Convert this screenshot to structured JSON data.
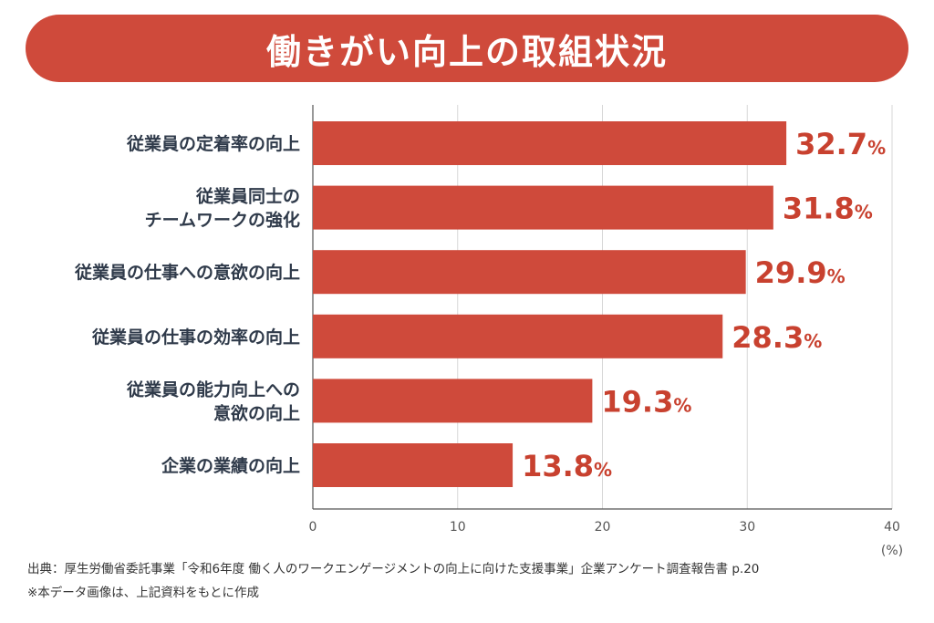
{
  "title": "働きがい向上の取組状況",
  "chart_data": {
    "type": "bar",
    "orientation": "horizontal",
    "categories": [
      [
        "従業員の定着率の向上"
      ],
      [
        "従業員同士の",
        "チームワークの強化"
      ],
      [
        "従業員の仕事への意欲の向上"
      ],
      [
        "従業員の仕事の効率の向上"
      ],
      [
        "従業員の能力向上への",
        "意欲の向上"
      ],
      [
        "企業の業績の向上"
      ]
    ],
    "values": [
      32.7,
      31.8,
      29.9,
      28.3,
      19.3,
      13.8
    ],
    "value_labels": [
      "32.7",
      "31.8",
      "29.9",
      "28.3",
      "19.3",
      "13.8"
    ],
    "value_suffix": "%",
    "xlim": [
      0,
      40
    ],
    "xticks": [
      "0",
      "10",
      "20",
      "30",
      "40"
    ],
    "xunit": "(%)",
    "grid": true,
    "bar_color": "#cf4a3b",
    "label_color": "#c8412f"
  },
  "source": {
    "line1": "出典：厚生労働省委託事業「令和6年度 働く人のワークエンゲージメントの向上に向けた支援事業」企業アンケート調査報告書 p.20",
    "line2": "※本データ画像は、上記資料をもとに作成"
  }
}
